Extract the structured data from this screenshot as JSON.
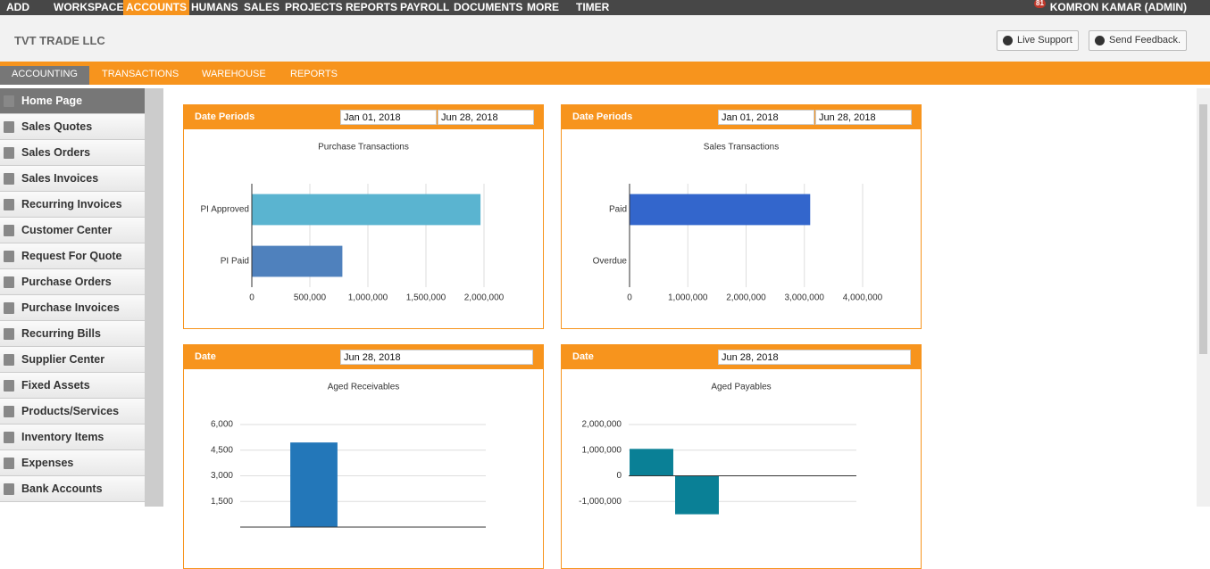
{
  "top_nav": {
    "items": [
      "ADD",
      "WORKSPACE",
      "ACCOUNTS",
      "HUMANS",
      "SALES",
      "PROJECTS",
      "REPORTS",
      "PAYROLL",
      "DOCUMENTS",
      "MORE",
      "TIMER"
    ],
    "active": "ACCOUNTS",
    "notification_count": "81",
    "user": "KOMRON KAMAR (ADMIN)"
  },
  "header": {
    "company": "TVT TRADE LLC",
    "buttons": [
      "Live Support",
      "Send Feedback."
    ]
  },
  "tabs": {
    "items": [
      "ACCOUNTING",
      "TRANSACTIONS",
      "WAREHOUSE",
      "REPORTS"
    ],
    "active": "ACCOUNTING"
  },
  "sidebar": {
    "items": [
      "Home Page",
      "Sales Quotes",
      "Sales Orders",
      "Sales Invoices",
      "Recurring Invoices",
      "Customer Center",
      "Request For Quote",
      "Purchase Orders",
      "Purchase Invoices",
      "Recurring Bills",
      "Supplier Center",
      "Fixed Assets",
      "Products/Services",
      "Inventory Items",
      "Expenses",
      "Bank Accounts"
    ],
    "active": "Home Page"
  },
  "widgets": [
    {
      "header_label": "Date Periods",
      "dates": [
        "Jan 01, 2018",
        "Jun 28, 2018"
      ],
      "chart_data": {
        "type": "bar",
        "orientation": "horizontal",
        "title": "Purchase Transactions",
        "categories": [
          "PI Approved",
          "PI Paid"
        ],
        "values": [
          1970000,
          780000
        ],
        "colors": [
          "#5ab4d0",
          "#4f81bd"
        ],
        "xlim": [
          0,
          2000000
        ],
        "xticks": [
          0,
          {
            "value": 500000,
            "label": "500,000"
          },
          {
            "value": 1000000,
            "label": "1,000,000"
          },
          {
            "value": 1500000,
            "label": "1,500,000"
          },
          {
            "value": 2000000,
            "label": "2,000,000"
          }
        ],
        "grid": true
      }
    },
    {
      "header_label": "Date Periods",
      "dates": [
        "Jan 01, 2018",
        "Jun 28, 2018"
      ],
      "chart_data": {
        "type": "bar",
        "orientation": "horizontal",
        "title": "Sales Transactions",
        "categories": [
          "Paid",
          "Overdue"
        ],
        "values": [
          3100000,
          0
        ],
        "colors": [
          "#3366cc",
          "#3366cc"
        ],
        "xlim": [
          0,
          4000000
        ],
        "xticks": [
          0,
          {
            "value": 1000000,
            "label": "1,000,000"
          },
          {
            "value": 2000000,
            "label": "2,000,000"
          },
          {
            "value": 3000000,
            "label": "3,000,000"
          },
          {
            "value": 4000000,
            "label": "4,000,000"
          }
        ],
        "grid": true
      }
    },
    {
      "header_label": "Date",
      "dates": [
        "Jun 28, 2018"
      ],
      "chart_data": {
        "type": "bar",
        "orientation": "vertical",
        "title": "Aged Receivables",
        "categories": [
          null,
          null,
          null,
          null,
          null
        ],
        "values": [
          0,
          4950,
          0,
          0,
          0
        ],
        "colors": [
          "#2377b9",
          "#2377b9",
          "#2377b9",
          "#2377b9",
          "#2377b9"
        ],
        "ylim": [
          0,
          6000
        ],
        "yticks": [
          {
            "value": 1500,
            "label": "1,500"
          },
          {
            "value": 3000,
            "label": "3,000"
          },
          {
            "value": 4500,
            "label": "4,500"
          },
          {
            "value": 6000,
            "label": "6,000"
          }
        ],
        "grid": true
      }
    },
    {
      "header_label": "Date",
      "dates": [
        "Jun 28, 2018"
      ],
      "chart_data": {
        "type": "bar",
        "orientation": "vertical",
        "title": "Aged Payables",
        "categories": [
          null,
          null,
          null,
          null,
          null
        ],
        "values": [
          1050000,
          -1500000,
          0,
          0,
          0
        ],
        "colors": [
          "#0a8096",
          "#0a8096",
          "#0a8096",
          "#0a8096",
          "#0a8096"
        ],
        "ylim": [
          -2000000,
          2000000
        ],
        "yticks": [
          {
            "value": -1000000,
            "label": "-1,000,000"
          },
          0,
          {
            "value": 1000000,
            "label": "1,000,000"
          },
          {
            "value": 2000000,
            "label": "2,000,000"
          }
        ],
        "grid": true
      }
    }
  ]
}
